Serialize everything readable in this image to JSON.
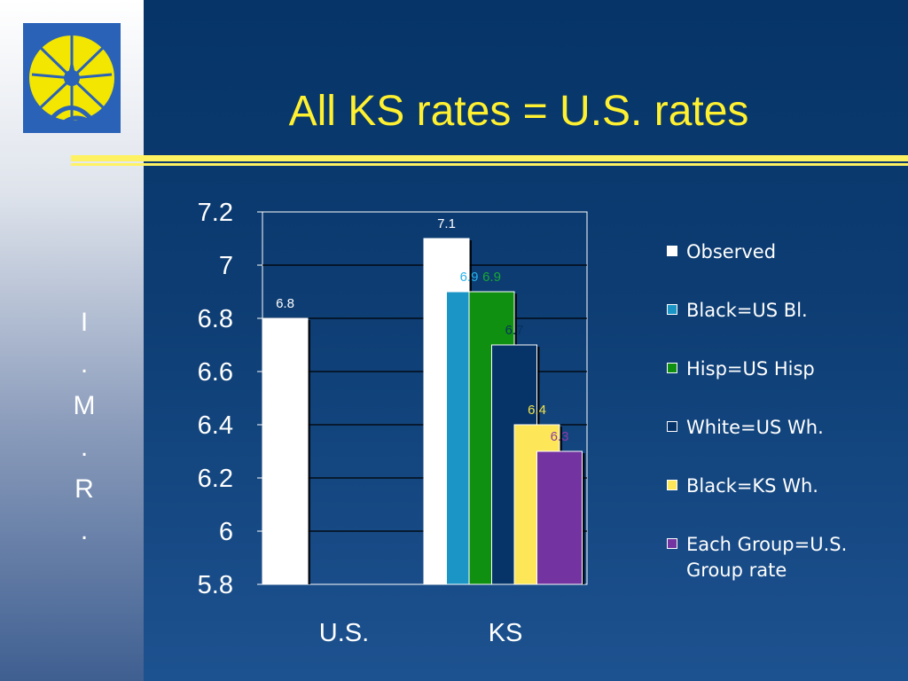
{
  "slide": {
    "title": "All KS rates = U.S. rates",
    "side_letters": [
      "I",
      ".",
      "M",
      ".",
      "R",
      "."
    ]
  },
  "colors": {
    "title": "#fff130",
    "rule": "#fff262",
    "logo_bg": "#2a62b8",
    "logo_sun": "#f3e600"
  },
  "logo": {
    "icon": "sun-starburst-logo"
  },
  "chart_data": {
    "type": "bar",
    "categories": [
      "U.S.",
      "KS"
    ],
    "ylim": [
      5.8,
      7.2
    ],
    "yticks": [
      "7.2",
      "7",
      "6.8",
      "6.6",
      "6.4",
      "6.2",
      "6",
      "5.8"
    ],
    "grid": true,
    "legend_position": "right",
    "series": [
      {
        "name": "Observed",
        "color": "#ffffff",
        "values": [
          6.8,
          7.1
        ],
        "labels": [
          "6.8",
          "7.1"
        ],
        "label_color": "#ffffff"
      },
      {
        "name": "Black=US Bl.",
        "color": "#1a95c6",
        "values": [
          null,
          6.9
        ],
        "labels": [
          null,
          "6.9"
        ],
        "label_color": "#27b2ea"
      },
      {
        "name": "Hisp=US Hisp",
        "color": "#109010",
        "values": [
          null,
          6.9
        ],
        "labels": [
          null,
          "6.9"
        ],
        "label_color": "#19a832"
      },
      {
        "name": "White=US Wh.",
        "color": "#063468",
        "values": [
          null,
          6.7
        ],
        "labels": [
          null,
          "6.7"
        ],
        "label_color": "#05335f"
      },
      {
        "name": "Black=KS Wh.",
        "color": "#fde758",
        "values": [
          null,
          6.4
        ],
        "labels": [
          null,
          "6.4"
        ],
        "label_color": "#f3e248"
      },
      {
        "name": "Each Group=U.S. Group rate",
        "color": "#7333a0",
        "values": [
          null,
          6.3
        ],
        "labels": [
          null,
          "6.3"
        ],
        "label_color": "#8c3ba5"
      }
    ]
  }
}
